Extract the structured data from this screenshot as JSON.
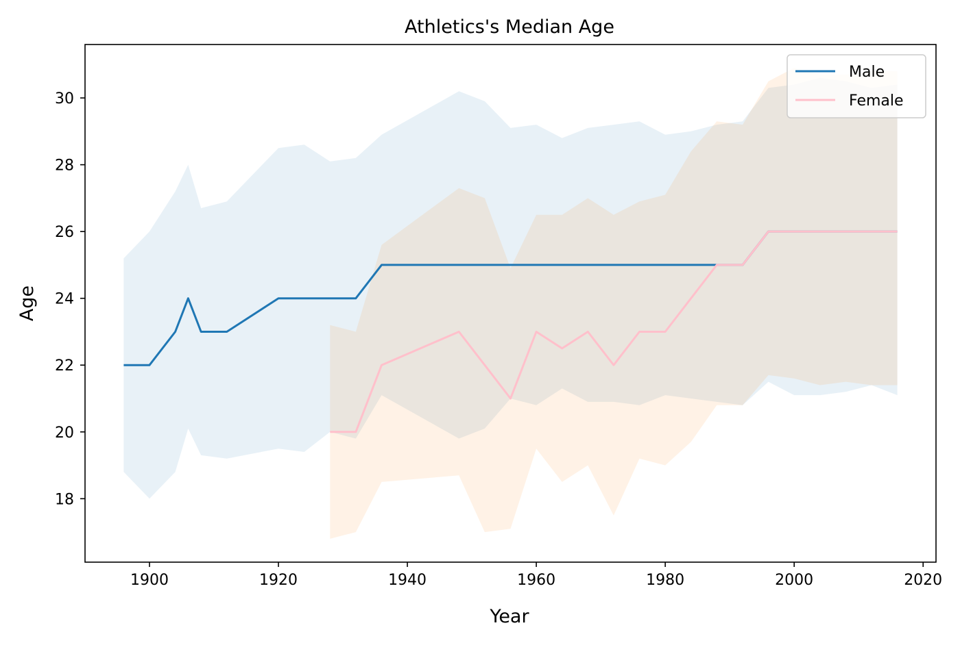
{
  "chart_data": {
    "type": "line",
    "title": "Athletics's Median Age",
    "xlabel": "Year",
    "ylabel": "Age",
    "xlim": [
      1890,
      2022
    ],
    "ylim": [
      16.1,
      31.6
    ],
    "xticks": [
      1900,
      1920,
      1940,
      1960,
      1980,
      2000,
      2020
    ],
    "yticks": [
      18,
      20,
      22,
      24,
      26,
      28,
      30
    ],
    "grid": false,
    "legend": {
      "placement": "top-right",
      "entries": [
        "Male",
        "Female"
      ]
    },
    "series": [
      {
        "name": "Male",
        "color": "#1f77b4",
        "band_color": "#1f77b4",
        "band_opacity": 0.1,
        "x": [
          1896,
          1900,
          1904,
          1906,
          1908,
          1912,
          1920,
          1924,
          1928,
          1932,
          1936,
          1948,
          1952,
          1956,
          1960,
          1964,
          1968,
          1972,
          1976,
          1980,
          1984,
          1988,
          1992,
          1996,
          2000,
          2004,
          2008,
          2012,
          2016
        ],
        "values": [
          22,
          22,
          23,
          24,
          23,
          23,
          24,
          24,
          24,
          24,
          25,
          25,
          25,
          25,
          25,
          25,
          25,
          25,
          25,
          25,
          25,
          25,
          25,
          26,
          26,
          26,
          26,
          26,
          26
        ],
        "band_low": [
          18.8,
          18.0,
          18.8,
          20.1,
          19.3,
          19.2,
          19.5,
          19.4,
          20.0,
          19.8,
          21.1,
          19.8,
          20.1,
          21.0,
          20.8,
          21.3,
          20.9,
          20.9,
          20.8,
          21.1,
          21.0,
          20.9,
          20.8,
          21.5,
          21.1,
          21.1,
          21.2,
          21.4,
          21.1
        ],
        "band_high": [
          25.2,
          26.0,
          27.2,
          28.0,
          26.7,
          26.9,
          28.5,
          28.6,
          28.1,
          28.2,
          28.9,
          30.2,
          29.9,
          29.1,
          29.2,
          28.8,
          29.1,
          29.2,
          29.3,
          28.9,
          29.0,
          29.2,
          29.3,
          30.3,
          30.4,
          30.6,
          30.5,
          30.3,
          30.4
        ]
      },
      {
        "name": "Female",
        "color": "#ffc0cb",
        "band_color": "#ff7f0e",
        "band_opacity": 0.1,
        "x": [
          1928,
          1932,
          1936,
          1948,
          1952,
          1956,
          1960,
          1964,
          1968,
          1972,
          1976,
          1980,
          1984,
          1988,
          1992,
          1996,
          2000,
          2004,
          2008,
          2012,
          2016
        ],
        "values": [
          20,
          20,
          22,
          23,
          22,
          21,
          23,
          22.5,
          23,
          22,
          23,
          23,
          24,
          25,
          25,
          26,
          26,
          26,
          26,
          26,
          26
        ],
        "band_low": [
          16.8,
          17.0,
          18.5,
          18.7,
          17.0,
          17.1,
          19.5,
          18.5,
          19.0,
          17.5,
          19.2,
          19.0,
          19.7,
          20.8,
          20.8,
          21.7,
          21.6,
          21.4,
          21.5,
          21.4,
          21.4
        ],
        "band_high": [
          23.2,
          23.0,
          25.6,
          27.3,
          27.0,
          24.9,
          26.5,
          26.5,
          27.0,
          26.5,
          26.9,
          27.1,
          28.4,
          29.3,
          29.2,
          30.5,
          30.9,
          30.7,
          30.7,
          30.8,
          30.8
        ]
      }
    ]
  }
}
